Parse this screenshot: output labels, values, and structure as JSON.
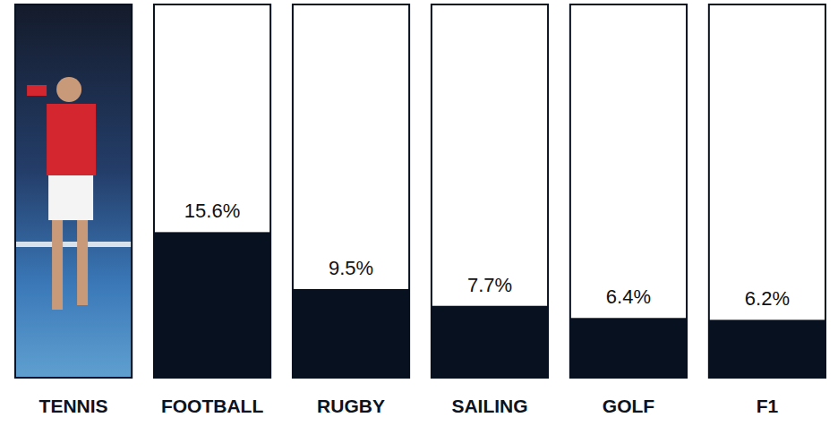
{
  "chart_data": {
    "type": "bar",
    "categories": [
      "TENNIS",
      "FOOTBALL",
      "RUGBY",
      "SAILING",
      "GOLF",
      "F1"
    ],
    "values": [
      null,
      15.6,
      9.5,
      7.7,
      6.4,
      6.2
    ],
    "value_labels": [
      null,
      "15.6%",
      "9.5%",
      "7.7%",
      "6.4%",
      "6.2%"
    ],
    "color": "#08111f",
    "ylim": [
      0,
      40
    ],
    "data_labels": true,
    "tick_labels": false,
    "grid": false
  }
}
